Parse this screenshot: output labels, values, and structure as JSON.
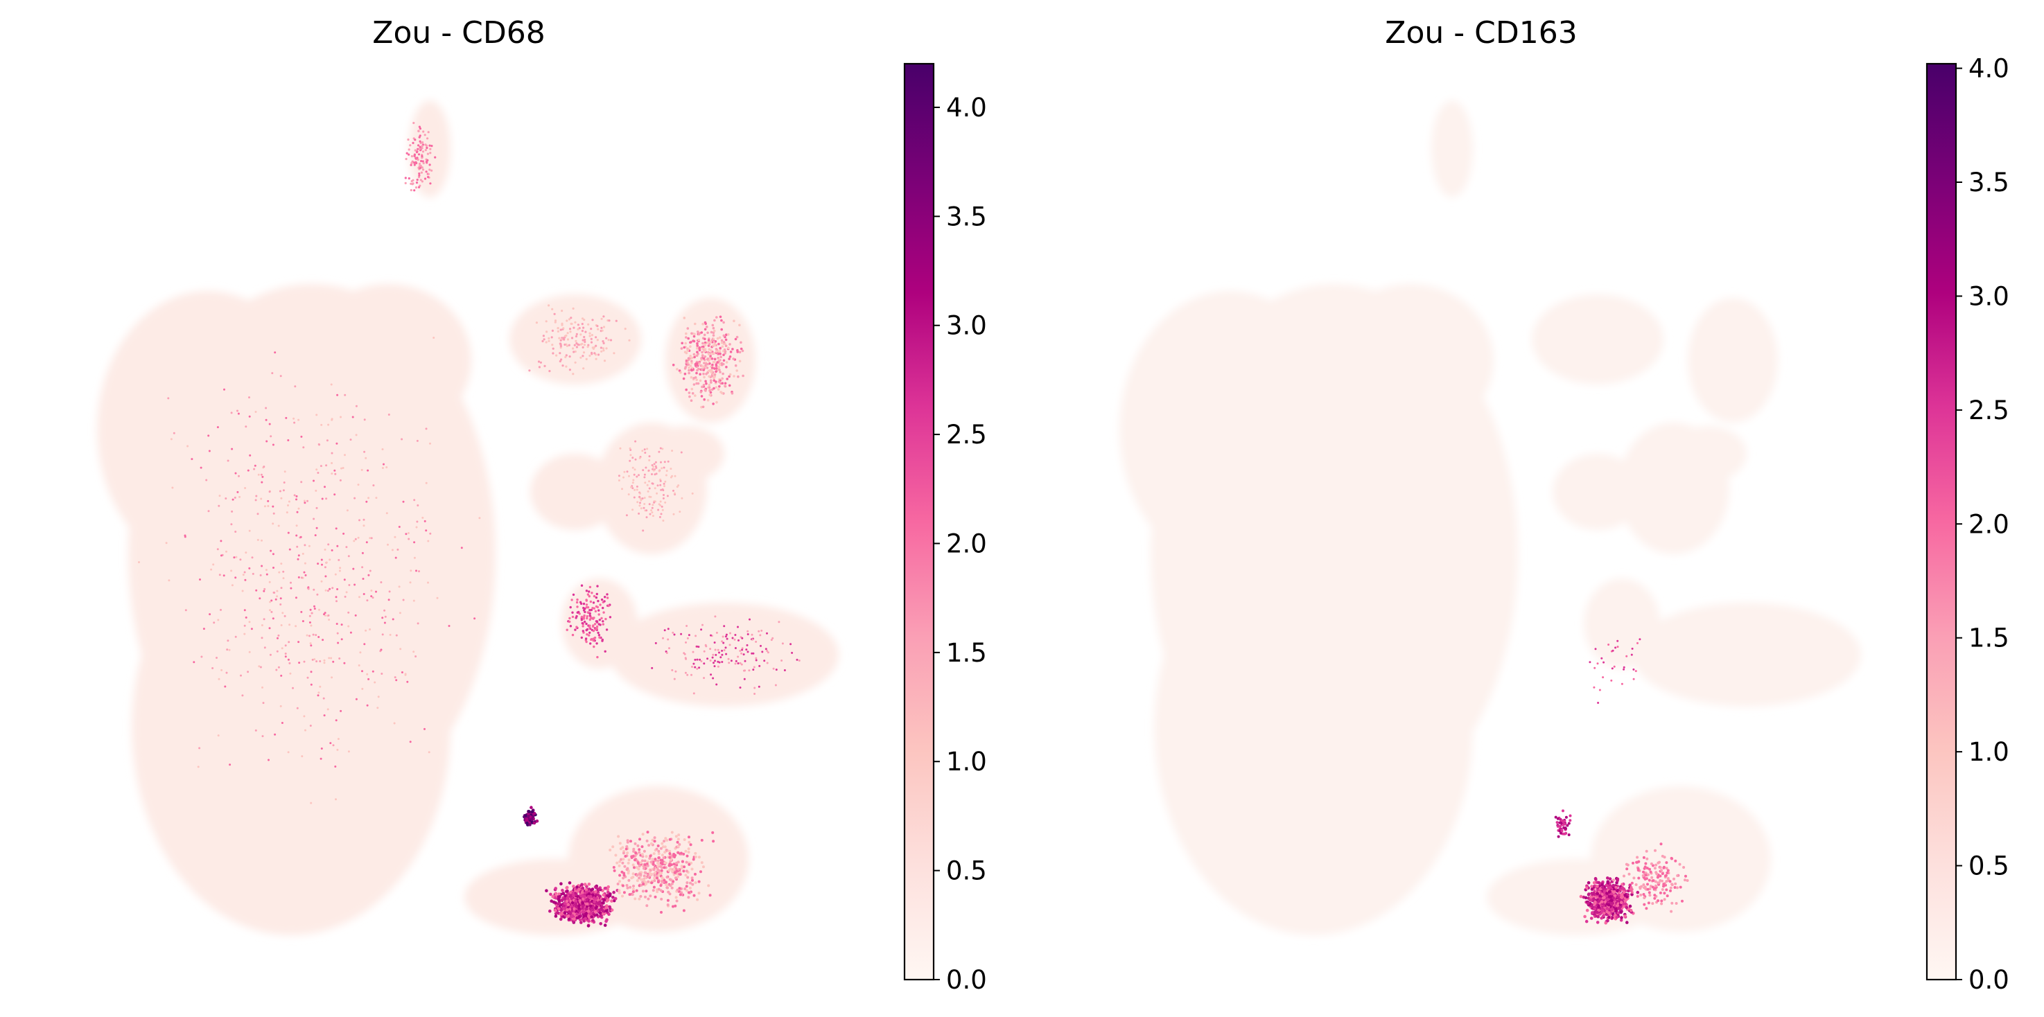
{
  "chart_data": [
    {
      "type": "scatter",
      "title": "Zou - CD68",
      "xlabel": "",
      "ylabel": "",
      "axes_visible": false,
      "grid": false,
      "colormap": "RdPu",
      "colorbar": {
        "location": "right",
        "min": 0.0,
        "max": 4.2,
        "ticks": [
          0.0,
          0.5,
          1.0,
          1.5,
          2.0,
          2.5,
          3.0,
          3.5,
          4.0
        ],
        "tick_labels": [
          "0.0",
          "0.5",
          "1.0",
          "1.5",
          "2.0",
          "2.5",
          "3.0",
          "3.5",
          "4.0"
        ]
      }
    },
    {
      "type": "scatter",
      "title": "Zou - CD163",
      "xlabel": "",
      "ylabel": "",
      "axes_visible": false,
      "grid": false,
      "colormap": "RdPu",
      "colorbar": {
        "location": "right",
        "min": 0.0,
        "max": 4.02,
        "ticks": [
          0.0,
          0.5,
          1.0,
          1.5,
          2.0,
          2.5,
          3.0,
          3.5,
          4.0
        ],
        "tick_labels": [
          "0.0",
          "0.5",
          "1.0",
          "1.5",
          "2.0",
          "2.5",
          "3.0",
          "3.5",
          "4.0"
        ]
      }
    }
  ]
}
